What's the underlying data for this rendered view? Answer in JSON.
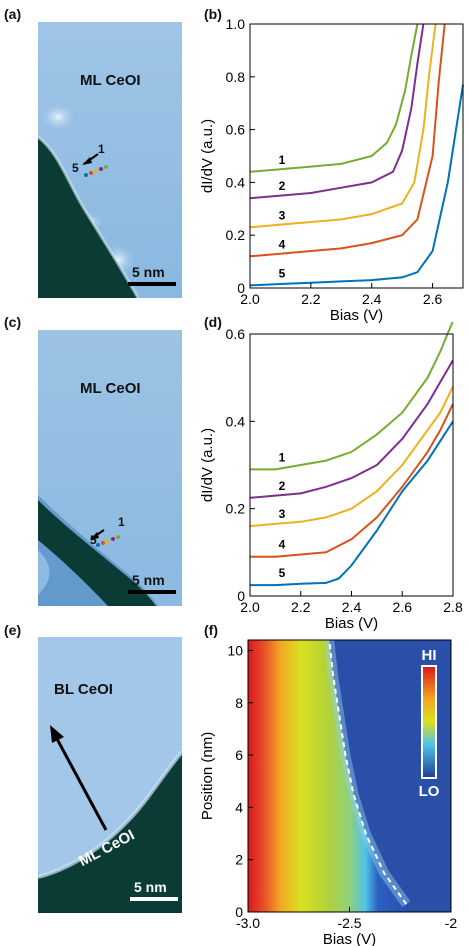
{
  "panels": {
    "a": {
      "label": "(a)",
      "region_label": "ML CeOI",
      "scale_label": "5 nm",
      "arrow_start": "5",
      "arrow_end": "1"
    },
    "b": {
      "label": "(b)"
    },
    "c": {
      "label": "(c)",
      "region_label": "ML CeOI",
      "scale_label": "5 nm",
      "arrow_start": "5",
      "arrow_end": "1"
    },
    "d": {
      "label": "(d)"
    },
    "e": {
      "label": "(e)",
      "region_label": "BL CeOI",
      "region_label_2": "ML CeOI",
      "scale_label": "5 nm"
    },
    "f": {
      "label": "(f)",
      "colorbar_hi": "HI",
      "colorbar_lo": "LO"
    }
  },
  "colors": {
    "curve1": "#77ac30",
    "curve2": "#7e2f8e",
    "curve3": "#edb120",
    "curve4": "#d95319",
    "curve5": "#0072bd"
  },
  "chart_data": [
    {
      "id": "b",
      "type": "line",
      "xlabel": "Bias (V)",
      "ylabel": "dI/dV (a.u.)",
      "xlim": [
        2.0,
        2.7
      ],
      "ylim": [
        0,
        1.0
      ],
      "xticks": [
        2.0,
        2.2,
        2.4,
        2.6
      ],
      "yticks": [
        0,
        0.2,
        0.4,
        0.6,
        0.8,
        1.0
      ],
      "xtick_labels": [
        "2.0",
        "2.2",
        "2.4",
        "2.6"
      ],
      "ytick_labels": [
        "0",
        "0.2",
        "0.4",
        "0.6",
        "0.8",
        "1.0"
      ],
      "series": [
        {
          "name": "1",
          "x": [
            2.0,
            2.1,
            2.2,
            2.3,
            2.4,
            2.45,
            2.48,
            2.51,
            2.53,
            2.55
          ],
          "y": [
            0.44,
            0.45,
            0.46,
            0.47,
            0.5,
            0.55,
            0.62,
            0.75,
            0.88,
            1.0
          ]
        },
        {
          "name": "2",
          "x": [
            2.0,
            2.1,
            2.2,
            2.3,
            2.4,
            2.47,
            2.5,
            2.53,
            2.55,
            2.57
          ],
          "y": [
            0.34,
            0.35,
            0.36,
            0.38,
            0.4,
            0.44,
            0.52,
            0.68,
            0.85,
            1.0
          ]
        },
        {
          "name": "3",
          "x": [
            2.0,
            2.1,
            2.2,
            2.3,
            2.4,
            2.5,
            2.54,
            2.57,
            2.59,
            2.61
          ],
          "y": [
            0.23,
            0.24,
            0.25,
            0.26,
            0.28,
            0.32,
            0.4,
            0.6,
            0.82,
            1.0
          ]
        },
        {
          "name": "4",
          "x": [
            2.0,
            2.1,
            2.2,
            2.3,
            2.4,
            2.5,
            2.55,
            2.6,
            2.62,
            2.64
          ],
          "y": [
            0.12,
            0.13,
            0.14,
            0.15,
            0.17,
            0.2,
            0.26,
            0.5,
            0.78,
            1.0
          ]
        },
        {
          "name": "5",
          "x": [
            2.0,
            2.1,
            2.2,
            2.3,
            2.4,
            2.5,
            2.55,
            2.6,
            2.65,
            2.7
          ],
          "y": [
            0.01,
            0.015,
            0.02,
            0.025,
            0.03,
            0.04,
            0.06,
            0.14,
            0.4,
            0.77
          ]
        }
      ]
    },
    {
      "id": "d",
      "type": "line",
      "xlabel": "Bias (V)",
      "ylabel": "dI/dV (a.u.)",
      "xlim": [
        2.0,
        2.8
      ],
      "ylim": [
        0,
        0.6
      ],
      "xticks": [
        2.0,
        2.2,
        2.4,
        2.6,
        2.8
      ],
      "yticks": [
        0,
        0.2,
        0.4,
        0.6
      ],
      "xtick_labels": [
        "2.0",
        "2.2",
        "2.4",
        "2.6",
        "2.8"
      ],
      "ytick_labels": [
        "0",
        "0.2",
        "0.4",
        "0.6"
      ],
      "series": [
        {
          "name": "1",
          "x": [
            2.0,
            2.1,
            2.2,
            2.3,
            2.4,
            2.5,
            2.6,
            2.7,
            2.75,
            2.8
          ],
          "y": [
            0.29,
            0.29,
            0.3,
            0.31,
            0.33,
            0.37,
            0.42,
            0.5,
            0.56,
            0.63
          ]
        },
        {
          "name": "2",
          "x": [
            2.0,
            2.1,
            2.2,
            2.3,
            2.4,
            2.5,
            2.6,
            2.7,
            2.75,
            2.8
          ],
          "y": [
            0.225,
            0.23,
            0.235,
            0.25,
            0.27,
            0.3,
            0.36,
            0.44,
            0.49,
            0.54
          ]
        },
        {
          "name": "3",
          "x": [
            2.0,
            2.1,
            2.2,
            2.3,
            2.4,
            2.5,
            2.6,
            2.7,
            2.75,
            2.8
          ],
          "y": [
            0.16,
            0.165,
            0.17,
            0.18,
            0.2,
            0.24,
            0.3,
            0.38,
            0.42,
            0.48
          ]
        },
        {
          "name": "4",
          "x": [
            2.0,
            2.1,
            2.2,
            2.3,
            2.4,
            2.5,
            2.6,
            2.7,
            2.75,
            2.8
          ],
          "y": [
            0.09,
            0.09,
            0.095,
            0.1,
            0.13,
            0.18,
            0.25,
            0.33,
            0.38,
            0.44
          ]
        },
        {
          "name": "5",
          "x": [
            2.0,
            2.1,
            2.2,
            2.3,
            2.35,
            2.4,
            2.5,
            2.6,
            2.7,
            2.8
          ],
          "y": [
            0.025,
            0.025,
            0.028,
            0.03,
            0.04,
            0.07,
            0.15,
            0.24,
            0.31,
            0.4
          ]
        }
      ]
    },
    {
      "id": "f",
      "type": "heatmap",
      "xlabel": "Bias (V)",
      "ylabel": "Position (nm)",
      "xlim": [
        -3.0,
        -2.0
      ],
      "ylim": [
        0,
        10.4
      ],
      "xticks": [
        -3.0,
        -2.5,
        -2.0
      ],
      "yticks": [
        0,
        2,
        4,
        6,
        8,
        10
      ],
      "xtick_labels": [
        "-3.0",
        "-2.5",
        "-2"
      ],
      "ytick_labels": [
        "0",
        "2",
        "4",
        "6",
        "8",
        "10"
      ],
      "edge_curve": {
        "x": [
          -2.22,
          -2.33,
          -2.42,
          -2.48,
          -2.52,
          -2.55,
          -2.58,
          -2.6
        ],
        "y": [
          0.3,
          1.5,
          3.0,
          4.5,
          6.0,
          7.5,
          9.0,
          10.4
        ]
      }
    }
  ]
}
